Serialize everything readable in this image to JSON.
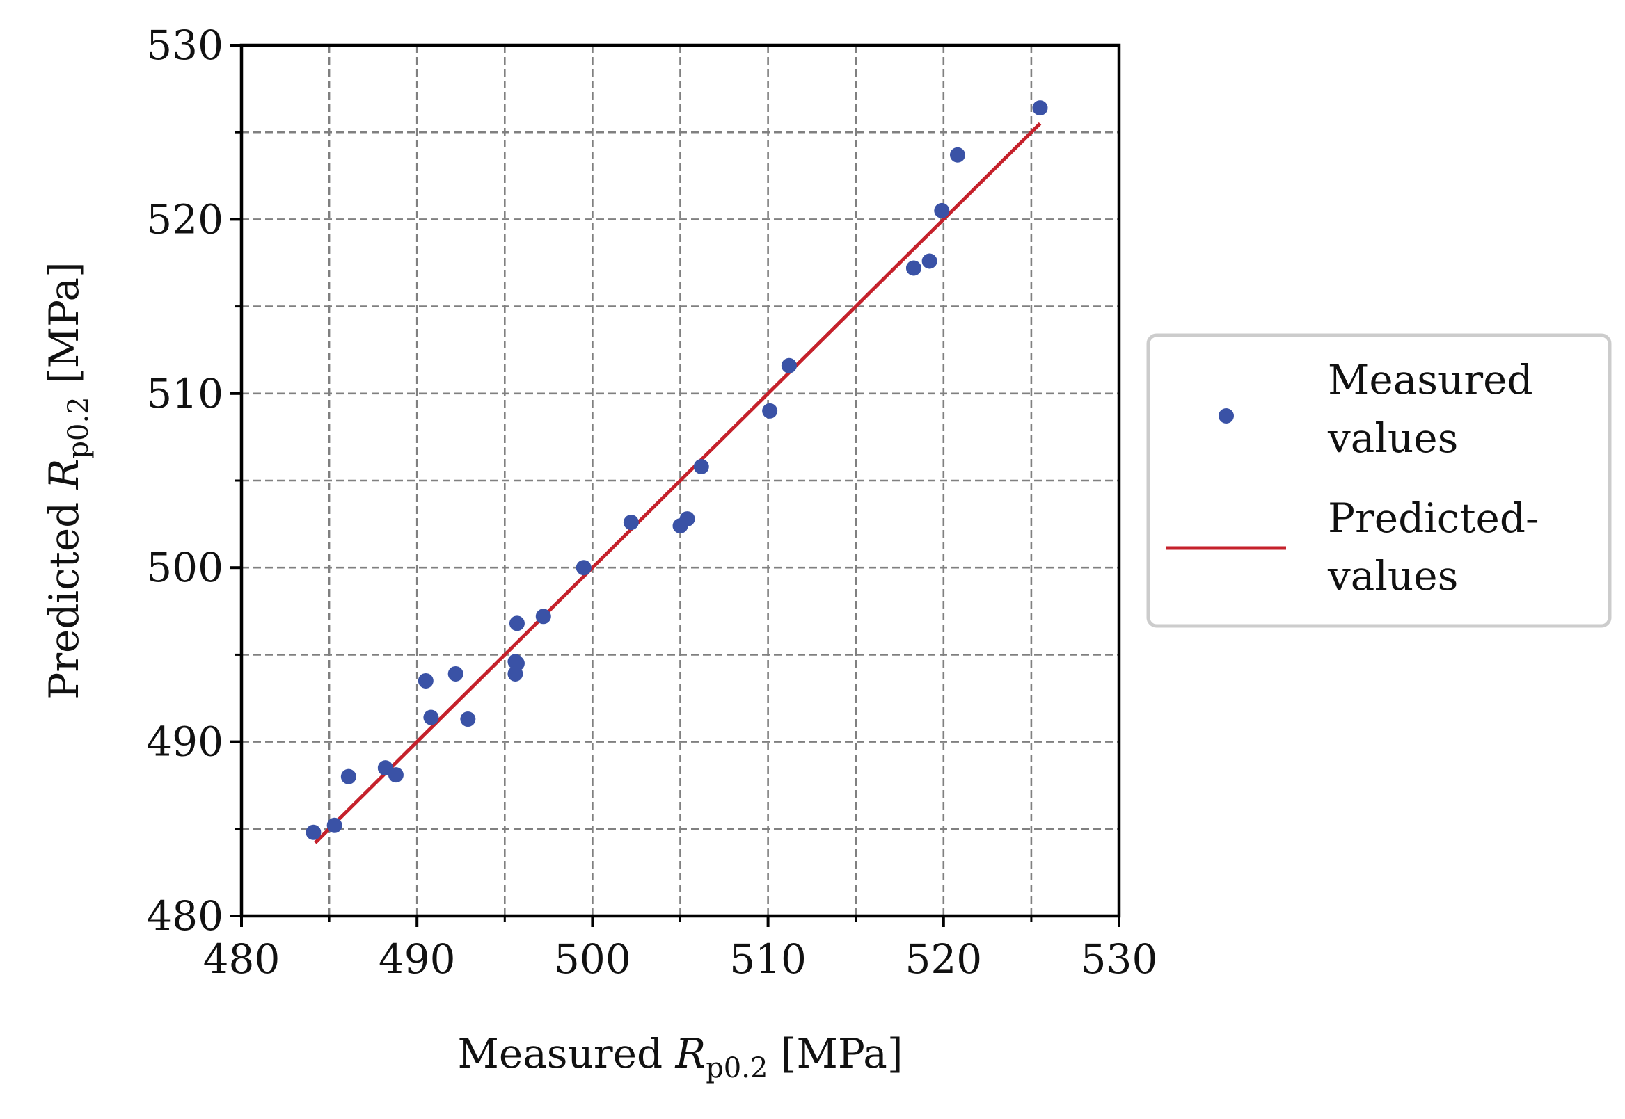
{
  "chart_data": {
    "type": "scatter",
    "title": "",
    "xlabel": {
      "prefix": "Measured ",
      "symbol": "R",
      "subscript": "p0.2",
      "unit": " [MPa]"
    },
    "ylabel": {
      "prefix": "Predicted ",
      "symbol": "R",
      "subscript": "p0.2",
      "unit": " [MPa]"
    },
    "xlim": [
      480,
      530
    ],
    "ylim": [
      480,
      530
    ],
    "major_ticks": [
      480,
      490,
      500,
      510,
      520,
      530
    ],
    "minor_ticks": [
      485,
      495,
      505,
      515,
      525
    ],
    "tick_labels": [
      "480",
      "490",
      "500",
      "510",
      "520",
      "530"
    ],
    "grid": true,
    "colors": {
      "points": "#3a52a6",
      "line": "#c5212b",
      "grid": "#808080"
    },
    "series": [
      {
        "name": "Measured values",
        "type": "scatter",
        "x": [
          484.1,
          485.3,
          486.1,
          488.2,
          488.8,
          490.5,
          490.8,
          492.2,
          492.9,
          495.6,
          495.6,
          495.7,
          495.7,
          497.2,
          499.5,
          502.2,
          505.0,
          505.4,
          506.2,
          510.1,
          511.2,
          518.3,
          519.2,
          519.9,
          520.8,
          525.5
        ],
        "y": [
          484.8,
          485.2,
          488.0,
          488.5,
          488.1,
          493.5,
          491.4,
          493.9,
          491.3,
          494.6,
          493.9,
          496.8,
          494.5,
          497.2,
          500.0,
          502.6,
          502.4,
          502.8,
          505.8,
          509.0,
          511.6,
          517.2,
          517.6,
          520.5,
          523.7,
          526.4
        ]
      },
      {
        "name": "Predicted-values",
        "type": "line",
        "x": [
          484.2,
          525.5
        ],
        "y": [
          484.2,
          525.5
        ]
      }
    ],
    "legend": {
      "placement": "outside-right",
      "entries": [
        {
          "line1": "Measured",
          "line2": "values"
        },
        {
          "line1": "Predicted-",
          "line2": "values"
        }
      ]
    }
  }
}
